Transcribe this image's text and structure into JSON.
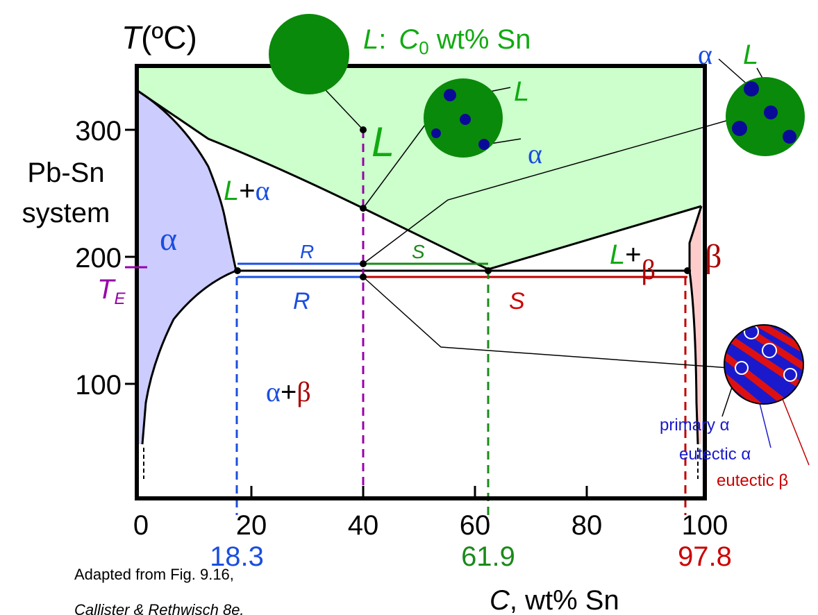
{
  "axes": {
    "y_title": {
      "symbol": "T",
      "unit": "(ºC)"
    },
    "y_ticks": [
      "300",
      "200",
      "100"
    ],
    "x_ticks": [
      "0",
      "20",
      "40",
      "60",
      "80",
      "100"
    ],
    "x_title": {
      "symbol": "C",
      "unit": ", wt% Sn"
    },
    "eutectic_temp": {
      "symbol": "T",
      "subscript": "E"
    }
  },
  "system": [
    "Pb-Sn",
    "system"
  ],
  "composition_label": {
    "phase": "L",
    "colon": ":",
    "symbol": "C",
    "subscript": "0",
    "unit": " wt% Sn"
  },
  "compositions": [
    "18.3",
    "61.9",
    "97.8"
  ],
  "regions": {
    "liquid": "L",
    "alpha": "α",
    "beta": "β",
    "l_alpha": {
      "phase": "L",
      "plus": "+",
      "solid": "α"
    },
    "l_beta": {
      "phase": "L",
      "plus": "+",
      "solid": "β"
    },
    "alpha_beta": {
      "first": "α",
      "plus": "+",
      "second": "β"
    }
  },
  "lever": {
    "upper_r": "R",
    "upper_s": "S",
    "lower_r": "R",
    "lower_s": "S"
  },
  "micro_1": {
    "liquid": "L",
    "solid": "α"
  },
  "micro_2": {
    "solid": "α",
    "liquid": "L"
  },
  "micro_3": {
    "primary": "primary α",
    "eutectic_alpha": "eutectic α",
    "eutectic_beta": "eutectic β"
  },
  "caption": [
    "Adapted from Fig. 9.16,",
    "Callister & Rethwisch 8e."
  ]
}
